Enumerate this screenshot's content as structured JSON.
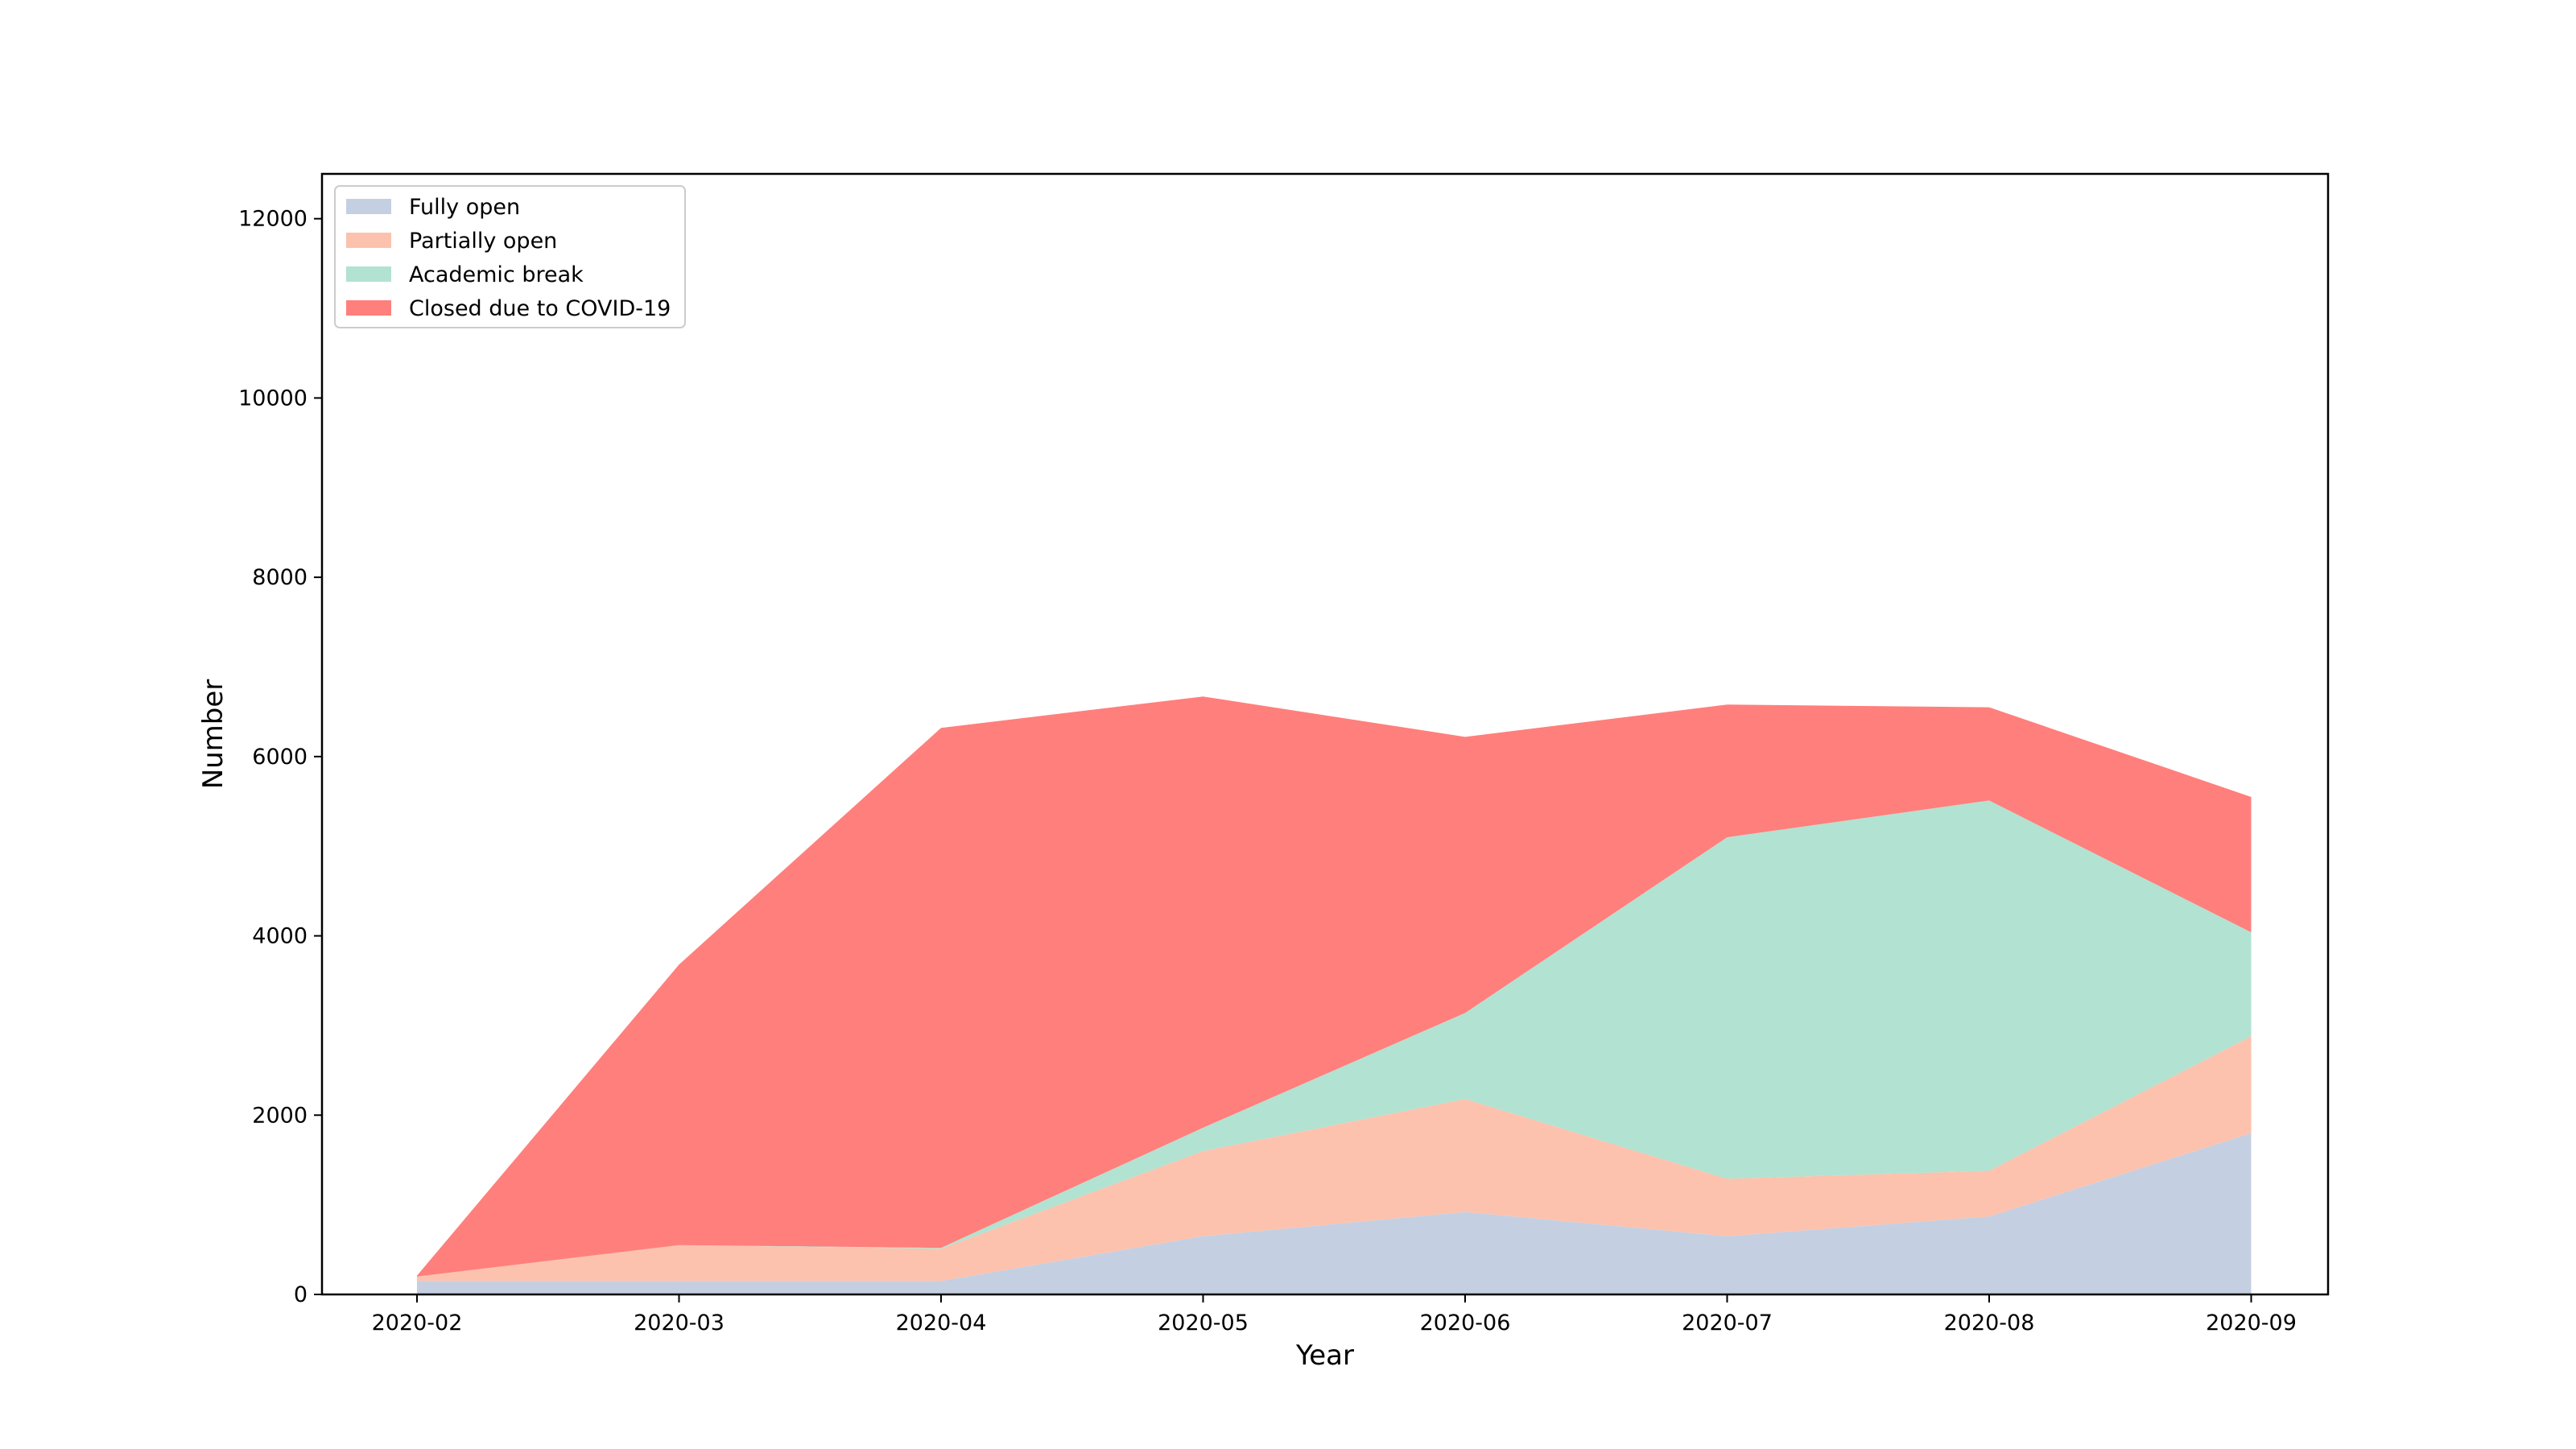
{
  "chart_data": {
    "type": "area",
    "stacked": true,
    "xlabel": "Year",
    "ylabel": "Number",
    "ylim": [
      0,
      12500
    ],
    "y_ticks": [
      0,
      2000,
      4000,
      6000,
      8000,
      10000,
      12000
    ],
    "x": [
      "2020-02",
      "2020-03",
      "2020-04",
      "2020-05",
      "2020-06",
      "2020-07",
      "2020-08",
      "2020-09"
    ],
    "legend_position": "top-left",
    "grid": false,
    "series": [
      {
        "name": "Fully open",
        "color": "#c5cfe2",
        "values": [
          150,
          150,
          150,
          650,
          920,
          650,
          870,
          1800
        ]
      },
      {
        "name": "Partially open",
        "color": "#fcc2ad",
        "values": [
          50,
          400,
          360,
          950,
          1260,
          640,
          510,
          1080
        ]
      },
      {
        "name": "Academic break",
        "color": "#b2e2d2",
        "values": [
          0,
          0,
          10,
          260,
          960,
          3810,
          4130,
          1160
        ]
      },
      {
        "name": "Closed due to COVID-19",
        "color": "#ff7f7c",
        "values": [
          10,
          3130,
          5800,
          4810,
          3080,
          1480,
          1040,
          1510
        ]
      }
    ]
  }
}
